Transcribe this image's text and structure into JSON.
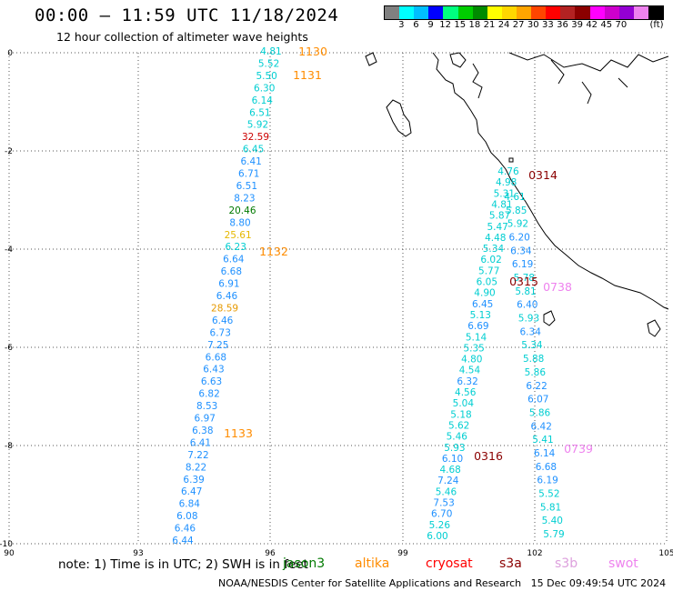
{
  "header": {
    "title": "00:00 – 11:59 UTC 11/18/2024",
    "subtitle": "12 hour collection of altimeter wave heights"
  },
  "colorbar": {
    "unit": "(ft)",
    "colors": [
      "#808080",
      "#00ffff",
      "#00bfff",
      "#0000ff",
      "#00ff7f",
      "#00cd00",
      "#008b00",
      "#ffff00",
      "#ffd700",
      "#ffa500",
      "#ff4500",
      "#ff0000",
      "#b22222",
      "#8b0000",
      "#ff00ff",
      "#cd00cd",
      "#9400d3",
      "#ee82ee",
      "#000000"
    ],
    "labels": [
      "3",
      "6",
      "9",
      "12",
      "15",
      "18",
      "21",
      "24",
      "27",
      "30",
      "33",
      "36",
      "39",
      "42",
      "45",
      "70"
    ]
  },
  "axes": {
    "x_ticks": [
      "90",
      "93",
      "96",
      "99",
      "102",
      "105"
    ],
    "y_ticks": [
      "0",
      "-2",
      "-4",
      "-6",
      "-8",
      "-10"
    ]
  },
  "tracks": [
    {
      "name": "track-1",
      "points": [
        {
          "v": "4.81",
          "c": "#00ced1"
        },
        {
          "v": "5.52",
          "c": "#00ced1"
        },
        {
          "v": "5.50",
          "c": "#00ced1"
        },
        {
          "v": "6.30",
          "c": "#00ced1"
        },
        {
          "v": "6.14",
          "c": "#00ced1"
        },
        {
          "v": "6.51",
          "c": "#00ced1"
        },
        {
          "v": "5.92",
          "c": "#00ced1"
        },
        {
          "v": "32.59",
          "c": "#cc0000"
        },
        {
          "v": "6.45",
          "c": "#00ced1"
        },
        {
          "v": "6.41",
          "c": "#1e90ff"
        },
        {
          "v": "6.71",
          "c": "#1e90ff"
        },
        {
          "v": "6.51",
          "c": "#1e90ff"
        },
        {
          "v": "8.23",
          "c": "#1e90ff"
        },
        {
          "v": "20.46",
          "c": "#007a00"
        },
        {
          "v": "8.80",
          "c": "#1e90ff"
        },
        {
          "v": "25.61",
          "c": "#e6b800"
        },
        {
          "v": "6.23",
          "c": "#00ced1"
        },
        {
          "v": "6.64",
          "c": "#1e90ff"
        },
        {
          "v": "6.68",
          "c": "#1e90ff"
        },
        {
          "v": "6.91",
          "c": "#1e90ff"
        },
        {
          "v": "6.46",
          "c": "#1e90ff"
        },
        {
          "v": "28.59",
          "c": "#e69900"
        },
        {
          "v": "6.46",
          "c": "#1e90ff"
        },
        {
          "v": "6.73",
          "c": "#1e90ff"
        },
        {
          "v": "7.25",
          "c": "#1e90ff"
        },
        {
          "v": "6.68",
          "c": "#1e90ff"
        },
        {
          "v": "6.43",
          "c": "#1e90ff"
        },
        {
          "v": "6.63",
          "c": "#1e90ff"
        },
        {
          "v": "6.82",
          "c": "#1e90ff"
        },
        {
          "v": "8.53",
          "c": "#1e90ff"
        },
        {
          "v": "6.97",
          "c": "#1e90ff"
        },
        {
          "v": "6.38",
          "c": "#1e90ff"
        },
        {
          "v": "6.41",
          "c": "#1e90ff"
        },
        {
          "v": "7.22",
          "c": "#1e90ff"
        },
        {
          "v": "8.22",
          "c": "#1e90ff"
        },
        {
          "v": "6.39",
          "c": "#1e90ff"
        },
        {
          "v": "6.47",
          "c": "#1e90ff"
        },
        {
          "v": "6.84",
          "c": "#1e90ff"
        },
        {
          "v": "6.08",
          "c": "#1e90ff"
        },
        {
          "v": "6.46",
          "c": "#1e90ff"
        },
        {
          "v": "6.44",
          "c": "#1e90ff"
        }
      ]
    },
    {
      "name": "track-2",
      "points": [
        {
          "v": "4.76",
          "c": "#00ced1"
        },
        {
          "v": "4.98",
          "c": "#00ced1"
        },
        {
          "v": "5.31",
          "c": "#00ced1"
        },
        {
          "v": "4.81",
          "c": "#00ced1"
        },
        {
          "v": "5.87",
          "c": "#00ced1"
        },
        {
          "v": "5.47",
          "c": "#00ced1"
        },
        {
          "v": "4.48",
          "c": "#00ced1"
        },
        {
          "v": "5.34",
          "c": "#00ced1"
        },
        {
          "v": "6.02",
          "c": "#00ced1"
        },
        {
          "v": "5.77",
          "c": "#00ced1"
        },
        {
          "v": "6.05",
          "c": "#00ced1"
        },
        {
          "v": "4.90",
          "c": "#00ced1"
        },
        {
          "v": "6.45",
          "c": "#1e90ff"
        },
        {
          "v": "5.13",
          "c": "#00ced1"
        },
        {
          "v": "6.69",
          "c": "#1e90ff"
        },
        {
          "v": "5.14",
          "c": "#00ced1"
        },
        {
          "v": "5.35",
          "c": "#00ced1"
        },
        {
          "v": "4.80",
          "c": "#00ced1"
        },
        {
          "v": "4.54",
          "c": "#00ced1"
        },
        {
          "v": "6.32",
          "c": "#1e90ff"
        },
        {
          "v": "4.56",
          "c": "#00ced1"
        },
        {
          "v": "5.04",
          "c": "#00ced1"
        },
        {
          "v": "5.18",
          "c": "#00ced1"
        },
        {
          "v": "5.62",
          "c": "#00ced1"
        },
        {
          "v": "5.46",
          "c": "#00ced1"
        },
        {
          "v": "5.93",
          "c": "#00ced1"
        },
        {
          "v": "6.10",
          "c": "#1e90ff"
        },
        {
          "v": "4.68",
          "c": "#00ced1"
        },
        {
          "v": "7.24",
          "c": "#1e90ff"
        },
        {
          "v": "5.46",
          "c": "#00ced1"
        },
        {
          "v": "7.53",
          "c": "#1e90ff"
        },
        {
          "v": "6.70",
          "c": "#1e90ff"
        },
        {
          "v": "5.26",
          "c": "#00ced1"
        },
        {
          "v": "6.00",
          "c": "#00ced1"
        }
      ]
    },
    {
      "name": "track-3",
      "points": [
        {
          "v": "4.61",
          "c": "#00ced1"
        },
        {
          "v": "5.85",
          "c": "#00ced1"
        },
        {
          "v": "5.92",
          "c": "#00ced1"
        },
        {
          "v": "6.20",
          "c": "#1e90ff"
        },
        {
          "v": "6.34",
          "c": "#1e90ff"
        },
        {
          "v": "6.19",
          "c": "#1e90ff"
        },
        {
          "v": "5.78",
          "c": "#00ced1"
        },
        {
          "v": "5.81",
          "c": "#00ced1"
        },
        {
          "v": "6.40",
          "c": "#1e90ff"
        },
        {
          "v": "5.93",
          "c": "#00ced1"
        },
        {
          "v": "6.34",
          "c": "#1e90ff"
        },
        {
          "v": "5.34",
          "c": "#00ced1"
        },
        {
          "v": "5.88",
          "c": "#00ced1"
        },
        {
          "v": "5.86",
          "c": "#00ced1"
        },
        {
          "v": "6.22",
          "c": "#1e90ff"
        },
        {
          "v": "6.07",
          "c": "#1e90ff"
        },
        {
          "v": "5.86",
          "c": "#00ced1"
        },
        {
          "v": "6.42",
          "c": "#1e90ff"
        },
        {
          "v": "5.41",
          "c": "#00ced1"
        },
        {
          "v": "6.14",
          "c": "#1e90ff"
        },
        {
          "v": "6.68",
          "c": "#1e90ff"
        },
        {
          "v": "6.19",
          "c": "#1e90ff"
        },
        {
          "v": "5.52",
          "c": "#00ced1"
        },
        {
          "v": "5.81",
          "c": "#00ced1"
        },
        {
          "v": "5.40",
          "c": "#00ced1"
        },
        {
          "v": "5.79",
          "c": "#00ced1"
        }
      ]
    }
  ],
  "pass_times": [
    {
      "t": "1130",
      "c": "#ff8c00"
    },
    {
      "t": "1131",
      "c": "#ff8c00"
    },
    {
      "t": "1132",
      "c": "#ff8c00"
    },
    {
      "t": "1133",
      "c": "#ff8c00"
    },
    {
      "t": "0314",
      "c": "#8b0000"
    },
    {
      "t": "0315",
      "c": "#8b0000"
    },
    {
      "t": "0316",
      "c": "#8b0000"
    },
    {
      "t": "0738",
      "c": "#ee82ee"
    },
    {
      "t": "0739",
      "c": "#ee82ee"
    }
  ],
  "footer": {
    "note": "note: 1) Time is in UTC; 2) SWH is in feet",
    "satellites": [
      {
        "name": "jason3",
        "c": "#007a00"
      },
      {
        "name": "altika",
        "c": "#ff8c00"
      },
      {
        "name": "cryosat",
        "c": "#ff0000"
      },
      {
        "name": "s3a",
        "c": "#8b0000"
      },
      {
        "name": "s3b",
        "c": "#dda0dd"
      },
      {
        "name": "swot",
        "c": "#ee82ee"
      }
    ],
    "credit": "NOAA/NESDIS Center for Satellite Applications and Research",
    "timestamp": "15 Dec 09:49:54 UTC 2024"
  }
}
